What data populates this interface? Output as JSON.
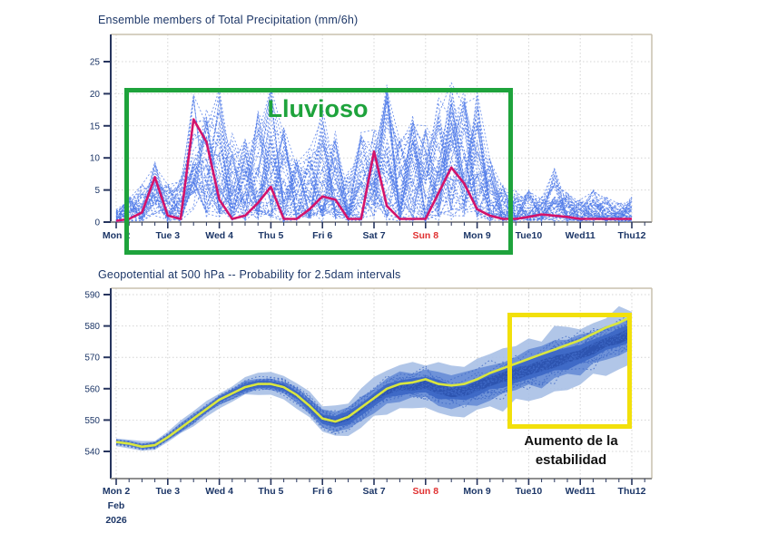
{
  "colors": {
    "axis_text": "#1c3667",
    "highlight_day": "#e03030",
    "grid": "#d4d4d4",
    "frame": "#c9c0ad",
    "axis_left": "#27355e",
    "axis_bottom": "#8f8f8f",
    "rainy_box": "#1ea33c",
    "stability_box": "#f2e00b"
  },
  "annotations": {
    "rainy_label": "Lluvioso",
    "stability_line1": "Aumento de la",
    "stability_line2": "estabilidad"
  },
  "chart_data": [
    {
      "id": "precip",
      "type": "line",
      "subtype": "ensemble-spaghetti",
      "title": "Ensemble members of Total Precipitation (mm/6h)",
      "ylabel": "",
      "xlabel": "",
      "ylim": [
        0,
        27.5
      ],
      "y_ticks": [
        0,
        5,
        10,
        15,
        20,
        25
      ],
      "x_day_labels": [
        "Mon 2",
        "Tue 3",
        "Wed 4",
        "Thu 5",
        "Fri 6",
        "Sat 7",
        "Sun 8",
        "Mon 9",
        "Tue10",
        "Wed11",
        "Thu12"
      ],
      "highlighted_day_index": 6,
      "steps_per_day": 4,
      "grid": true,
      "legend": "none",
      "n_members": 50,
      "series": [
        {
          "name": "control",
          "color": "#d4136a",
          "values": [
            0.2,
            0.5,
            1.5,
            7,
            1,
            0.5,
            16,
            12.5,
            3.5,
            0.5,
            1,
            3,
            5.5,
            0.5,
            0.5,
            2,
            4,
            3.5,
            0.5,
            0.5,
            11,
            2.5,
            0.5,
            0.5,
            0.5,
            4.5,
            8.5,
            6,
            2,
            1,
            0.5,
            0.5,
            0.8,
            1.2,
            1,
            0.8,
            0.5,
            0.5,
            0.5,
            0.5,
            0.5
          ]
        },
        {
          "name": "ensemble_envelope_max",
          "color": "#4d79e8",
          "values": [
            2,
            4,
            6,
            9.5,
            6,
            7,
            20,
            18,
            21,
            14,
            13,
            18,
            21.5,
            15,
            10,
            12,
            18,
            15,
            8,
            14,
            15,
            22,
            13,
            17,
            16,
            20,
            22.5,
            21,
            22,
            10,
            6,
            5,
            5,
            4,
            8.5,
            5,
            4,
            5,
            4,
            3,
            4
          ]
        }
      ]
    },
    {
      "id": "geopotential",
      "type": "area",
      "subtype": "probability-plume",
      "title": "Geopotential at 500 hPa -- Probability for 2.5dam intervals",
      "ylabel": "",
      "xlabel": "",
      "ylim": [
        535,
        592
      ],
      "y_ticks": [
        540,
        550,
        560,
        570,
        580,
        590
      ],
      "x_day_labels": [
        "Mon 2",
        "Tue 3",
        "Wed 4",
        "Thu 5",
        "Fri 6",
        "Sat 7",
        "Sun 8",
        "Mon 9",
        "Tue10",
        "Wed11",
        "Thu12"
      ],
      "highlighted_day_index": 6,
      "x_sub_labels": [
        "Feb",
        "2026"
      ],
      "steps_per_day": 4,
      "grid": true,
      "legend": "none",
      "n_members": 26,
      "series": [
        {
          "name": "control",
          "color": "#d9e63f",
          "values": [
            543,
            542.5,
            541.5,
            542,
            544.5,
            547.5,
            550.5,
            553.5,
            556.5,
            558.5,
            560.5,
            561.5,
            561.5,
            560.5,
            558,
            554.5,
            550.5,
            549.5,
            551,
            554,
            557,
            560,
            561.5,
            562,
            563,
            561.5,
            561,
            561.5,
            563,
            565,
            566.5,
            568,
            569.5,
            571,
            572.5,
            574,
            575.5,
            577.5,
            579.5,
            581,
            583
          ]
        },
        {
          "name": "spread_half_width_dam",
          "color": "#a9c0e6",
          "values": [
            1.2,
            1.3,
            1.5,
            1.6,
            1.8,
            2,
            2.2,
            2.3,
            2.4,
            2.6,
            2.8,
            3,
            3.2,
            3.4,
            3.6,
            4,
            4.4,
            4.8,
            5.2,
            5.6,
            6,
            6.3,
            6.6,
            6.9,
            7.2,
            7.5,
            7.8,
            8,
            8.3,
            8.6,
            8.8,
            9,
            9.2,
            9.3,
            9.4,
            9.4,
            9.3,
            9,
            8.7,
            8.4,
            8
          ]
        },
        {
          "name": "band_offset_below_control_dam",
          "color": "#3f6ac7",
          "values": [
            0,
            0,
            0,
            0,
            0,
            0,
            0,
            0,
            0,
            0,
            0,
            0,
            0,
            0,
            0,
            0,
            0,
            0.1,
            0.2,
            0.35,
            0.5,
            0.7,
            0.95,
            1.2,
            1.5,
            1.75,
            2,
            2.25,
            2.5,
            2.75,
            3,
            3.25,
            3.5,
            3.75,
            4,
            4.25,
            4.5,
            4.6,
            4.75,
            4.9,
            5
          ]
        }
      ]
    }
  ]
}
